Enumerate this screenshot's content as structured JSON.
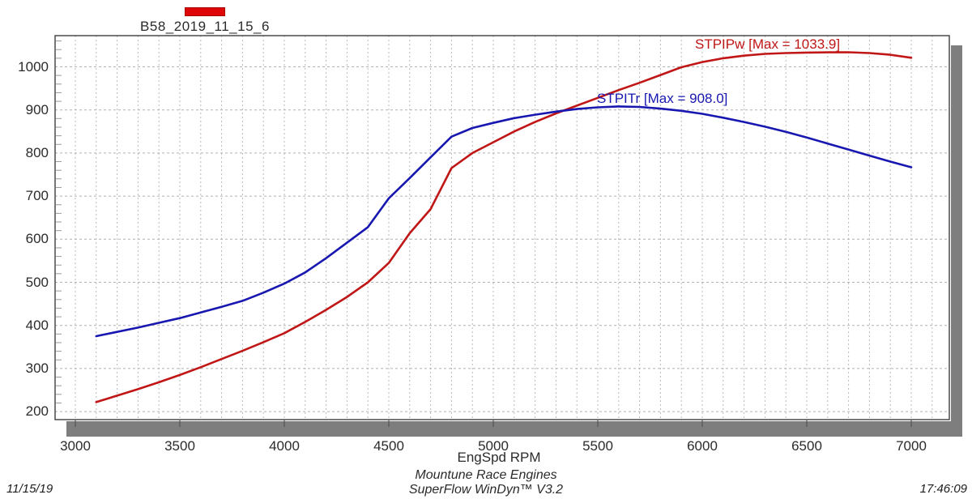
{
  "legend": {
    "label": "B58_2019_11_15_6",
    "swatch_color": "#dd0707"
  },
  "chart_data": {
    "type": "line",
    "title": "",
    "xlabel": "EngSpd RPM",
    "ylabel": "",
    "x_ticks": [
      3000,
      3500,
      4000,
      4500,
      5000,
      5500,
      6000,
      6500,
      7000
    ],
    "y_ticks": [
      200,
      300,
      400,
      500,
      600,
      700,
      800,
      900,
      1000
    ],
    "x_range": [
      2900,
      7180
    ],
    "y_range": [
      185,
      1072
    ],
    "grid": "dashed gray; vertical every 100 RPM, horizontal every 100 units, minor y-ticks every 20 on left edge",
    "legend_position": "top-left-above-plot",
    "series": [
      {
        "name": "STPIPw",
        "label": "STPIPw [Max = 1033.9]",
        "max": 1033.9,
        "color": "#c01616",
        "x": [
          3100,
          3200,
          3300,
          3400,
          3500,
          3600,
          3700,
          3800,
          3900,
          4000,
          4100,
          4200,
          4300,
          4400,
          4500,
          4600,
          4700,
          4800,
          4900,
          5000,
          5100,
          5200,
          5300,
          5400,
          5500,
          5600,
          5700,
          5800,
          5900,
          6000,
          6100,
          6200,
          6300,
          6400,
          6500,
          6600,
          6700,
          6800,
          6900,
          7000
        ],
        "values": [
          222,
          237,
          252,
          268,
          285,
          303,
          322,
          341,
          361,
          382,
          408,
          436,
          466,
          500,
          545,
          614,
          670,
          765,
          800,
          825,
          850,
          872,
          892,
          910,
          928,
          946,
          963,
          981,
          999,
          1011,
          1020,
          1026,
          1030,
          1032,
          1033,
          1033.6,
          1033.9,
          1032,
          1028,
          1021
        ]
      },
      {
        "name": "STPITr",
        "label": "STPITr [Max = 908.0]",
        "max": 908.0,
        "color": "#1818b0",
        "x": [
          3100,
          3200,
          3300,
          3400,
          3500,
          3600,
          3700,
          3800,
          3900,
          4000,
          4100,
          4200,
          4300,
          4400,
          4500,
          4600,
          4700,
          4800,
          4900,
          5000,
          5100,
          5200,
          5300,
          5400,
          5500,
          5600,
          5700,
          5800,
          5900,
          6000,
          6100,
          6200,
          6300,
          6400,
          6500,
          6600,
          6700,
          6800,
          6900,
          7000
        ],
        "values": [
          375,
          385,
          395,
          406,
          417,
          430,
          443,
          457,
          476,
          497,
          523,
          556,
          592,
          628,
          695,
          742,
          790,
          838,
          858,
          870,
          881,
          889,
          896,
          902,
          906,
          908,
          907,
          903,
          898,
          891,
          882,
          872,
          861,
          849,
          836,
          822,
          808,
          794,
          780,
          767
        ]
      }
    ]
  },
  "footer": {
    "center_line1": "Mountune Race Engines",
    "center_line2": "SuperFlow WinDyn™ V3.2",
    "date": "11/15/19",
    "time": "17:46:09"
  }
}
